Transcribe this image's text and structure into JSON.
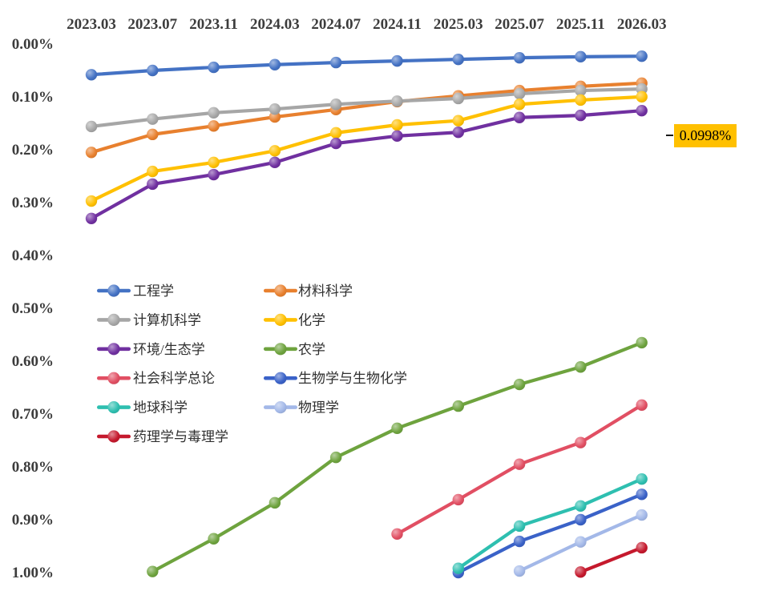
{
  "chart_data": {
    "type": "line",
    "title": "",
    "categories": [
      "2023.03",
      "2023.07",
      "2023.11",
      "2024.03",
      "2024.07",
      "2024.11",
      "2025.03",
      "2025.07",
      "2025.11",
      "2026.03"
    ],
    "x_axis": {
      "position": "top",
      "tick_label_color": "#3c3c3c"
    },
    "y_axis": {
      "reversed": true,
      "min": 0.0,
      "max": 1.0,
      "step": 0.1,
      "unit": "%",
      "tick_labels": [
        "0.00%",
        "0.10%",
        "0.20%",
        "0.30%",
        "0.40%",
        "0.50%",
        "0.60%",
        "0.70%",
        "0.80%",
        "0.90%",
        "1.00%"
      ]
    },
    "grid": false,
    "legend_position": "inside-left-middle-two-columns",
    "series": [
      {
        "name": "工程学",
        "color": "#4472C4",
        "values": [
          0.058,
          0.05,
          0.044,
          0.039,
          0.035,
          0.032,
          0.029,
          0.026,
          0.024,
          0.023
        ]
      },
      {
        "name": "材料科学",
        "color": "#E8802E",
        "values": [
          0.205,
          0.171,
          0.155,
          0.138,
          0.124,
          0.109,
          0.098,
          0.088,
          0.08,
          0.074
        ]
      },
      {
        "name": "计算机科学",
        "color": "#A6A6A6",
        "values": [
          0.156,
          0.142,
          0.13,
          0.123,
          0.114,
          0.108,
          0.103,
          0.094,
          0.088,
          0.085
        ]
      },
      {
        "name": "化学",
        "color": "#FFC000",
        "values": [
          0.297,
          0.241,
          0.224,
          0.202,
          0.168,
          0.153,
          0.145,
          0.114,
          0.106,
          0.0998
        ]
      },
      {
        "name": "环境/生态学",
        "color": "#7030A0",
        "values": [
          0.33,
          0.265,
          0.247,
          0.224,
          0.188,
          0.174,
          0.167,
          0.139,
          0.135,
          0.126
        ]
      },
      {
        "name": "农学",
        "color": "#6EA33E",
        "values": [
          null,
          0.998,
          0.936,
          0.868,
          0.782,
          0.727,
          0.685,
          0.644,
          0.611,
          0.565
        ]
      },
      {
        "name": "社会科学总论",
        "color": "#E14F63",
        "values": [
          null,
          null,
          null,
          null,
          null,
          0.927,
          0.862,
          0.795,
          0.754,
          0.683
        ]
      },
      {
        "name": "生物学与生物化学",
        "color": "#3A62C8",
        "values": [
          null,
          null,
          null,
          null,
          null,
          null,
          1.0,
          0.941,
          0.9,
          0.852
        ]
      },
      {
        "name": "地球科学",
        "color": "#2EBFB0",
        "values": [
          null,
          null,
          null,
          null,
          null,
          null,
          0.992,
          0.912,
          0.874,
          0.823
        ]
      },
      {
        "name": "物理学",
        "color": "#A3B8E8",
        "values": [
          null,
          null,
          null,
          null,
          null,
          null,
          null,
          0.997,
          0.942,
          0.891
        ]
      },
      {
        "name": "药理学与毒理学",
        "color": "#C5192D",
        "values": [
          null,
          null,
          null,
          null,
          null,
          null,
          null,
          null,
          0.999,
          0.953
        ]
      }
    ],
    "annotation": {
      "text": "0.0998%",
      "series": "化学",
      "category": "2026.03",
      "bg_color": "#FFC000",
      "text_color": "#000000"
    }
  }
}
